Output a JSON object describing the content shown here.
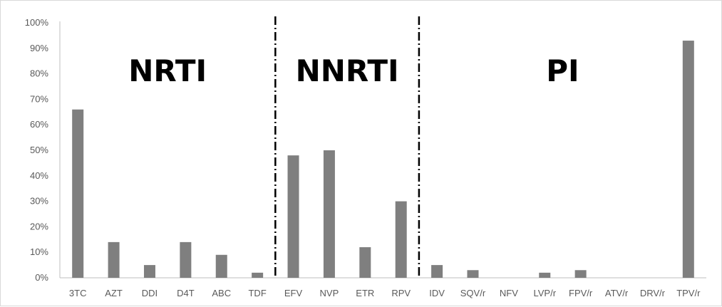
{
  "chart_data": {
    "type": "bar",
    "title": "",
    "xlabel": "",
    "ylabel": "",
    "ylim": [
      0,
      100
    ],
    "y_ticks": [
      "0%",
      "10%",
      "20%",
      "30%",
      "40%",
      "50%",
      "60%",
      "70%",
      "80%",
      "90%",
      "100%"
    ],
    "categories": [
      "3TC",
      "AZT",
      "DDI",
      "D4T",
      "ABC",
      "TDF",
      "EFV",
      "NVP",
      "ETR",
      "RPV",
      "IDV",
      "SQV/r",
      "NFV",
      "LVP/r",
      "FPV/r",
      "ATV/r",
      "DRV/r",
      "TPV/r"
    ],
    "values": [
      66,
      14,
      5,
      14,
      9,
      2,
      48,
      50,
      12,
      30,
      5,
      3,
      0,
      2,
      3,
      0,
      0,
      93
    ],
    "bar_color": "#7f7f7f",
    "groups": [
      {
        "label": "NRTI",
        "from": 0,
        "to": 5
      },
      {
        "label": "NNRTI",
        "from": 6,
        "to": 9
      },
      {
        "label": "PI",
        "from": 10,
        "to": 17
      }
    ],
    "grid": false,
    "legend": "none"
  }
}
